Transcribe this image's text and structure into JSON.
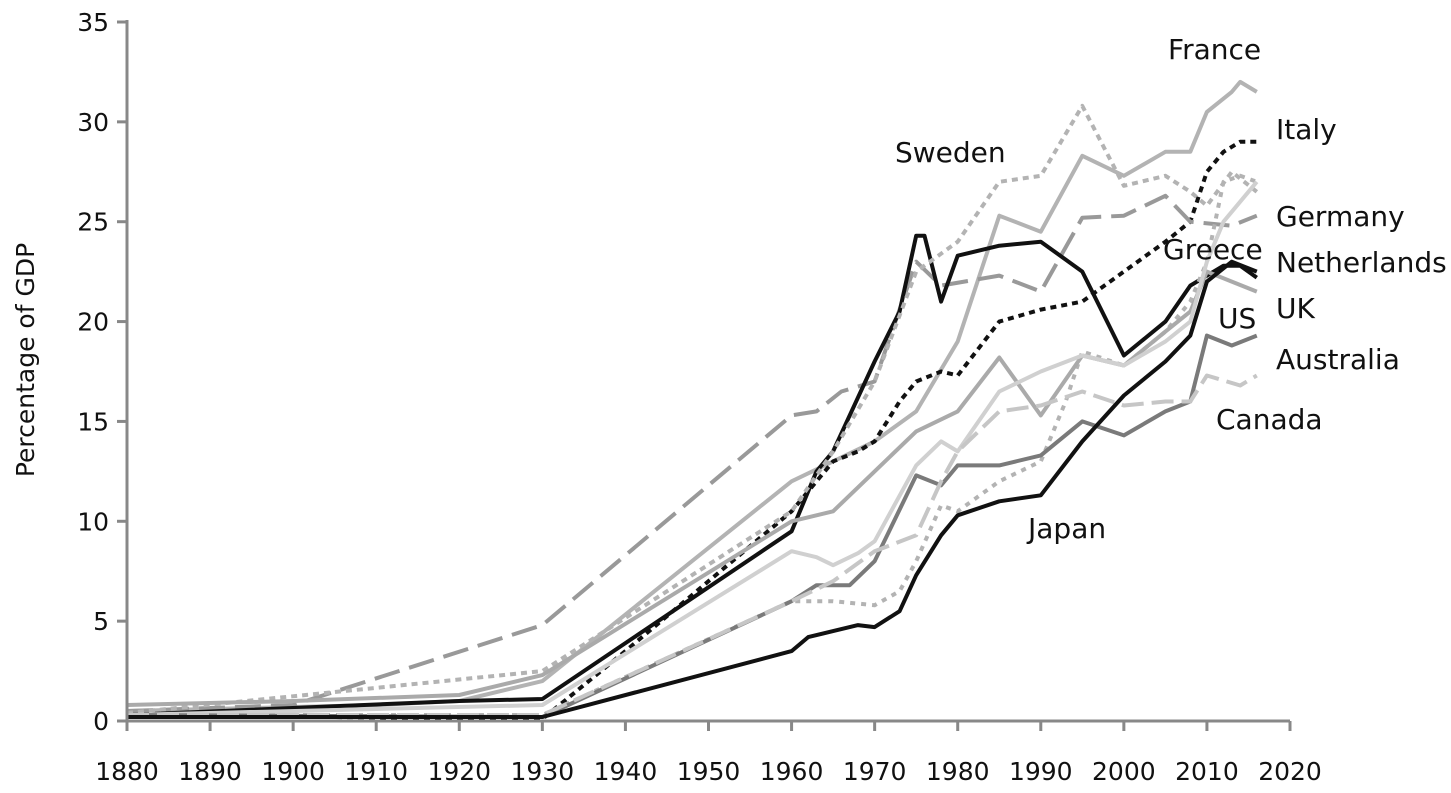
{
  "chart_data": {
    "type": "line",
    "title": "",
    "ylabel": "Percentage of GDP",
    "xlabel": "",
    "xlim": [
      1880,
      2020
    ],
    "ylim": [
      0,
      35
    ],
    "x_ticks": [
      "1880",
      "1890",
      "1900",
      "1910",
      "1920",
      "1930",
      "1940",
      "1950",
      "1960",
      "1970",
      "1980",
      "1990",
      "2000",
      "2010",
      "2020"
    ],
    "y_ticks": [
      "0",
      "5",
      "10",
      "15",
      "20",
      "25",
      "30",
      "35"
    ],
    "grid": false,
    "legend": "direct labels at line ends",
    "series": [
      {
        "name": "France",
        "color": "#b3b3b3",
        "dash": "solid",
        "width": 4,
        "points": [
          [
            1880,
            0.5
          ],
          [
            1890,
            0.6
          ],
          [
            1900,
            0.7
          ],
          [
            1910,
            0.8
          ],
          [
            1920,
            1.0
          ],
          [
            1930,
            2.0
          ],
          [
            1960,
            12.0
          ],
          [
            1970,
            14.0
          ],
          [
            1975,
            15.5
          ],
          [
            1980,
            19.0
          ],
          [
            1985,
            25.3
          ],
          [
            1990,
            24.5
          ],
          [
            1995,
            28.3
          ],
          [
            2000,
            27.3
          ],
          [
            2005,
            28.5
          ],
          [
            2008,
            28.5
          ],
          [
            2010,
            30.5
          ],
          [
            2013,
            31.5
          ],
          [
            2014,
            32.0
          ],
          [
            2016,
            31.5
          ]
        ]
      },
      {
        "name": "Italy",
        "color": "#111111",
        "dash": "6,5",
        "width": 4,
        "points": [
          [
            1880,
            0.3
          ],
          [
            1930,
            0.1
          ],
          [
            1940,
            3.5
          ],
          [
            1960,
            10.5
          ],
          [
            1963,
            12.0
          ],
          [
            1965,
            13.0
          ],
          [
            1968,
            13.5
          ],
          [
            1970,
            14.0
          ],
          [
            1973,
            16.0
          ],
          [
            1975,
            17.0
          ],
          [
            1978,
            17.5
          ],
          [
            1980,
            17.3
          ],
          [
            1985,
            20.0
          ],
          [
            1990,
            20.6
          ],
          [
            1995,
            21.0
          ],
          [
            2000,
            22.5
          ],
          [
            2005,
            24.0
          ],
          [
            2008,
            25.0
          ],
          [
            2010,
            27.5
          ],
          [
            2012,
            28.5
          ],
          [
            2014,
            29.0
          ],
          [
            2016,
            29.0
          ]
        ]
      },
      {
        "name": "Germany",
        "color": "#999999",
        "dash": "26,10",
        "width": 4,
        "points": [
          [
            1880,
            0.5
          ],
          [
            1900,
            0.8
          ],
          [
            1930,
            4.8
          ],
          [
            1960,
            15.3
          ],
          [
            1963,
            15.5
          ],
          [
            1966,
            16.5
          ],
          [
            1970,
            17.0
          ],
          [
            1975,
            23.0
          ],
          [
            1978,
            21.8
          ],
          [
            1985,
            22.3
          ],
          [
            1990,
            21.5
          ],
          [
            1995,
            25.2
          ],
          [
            2000,
            25.3
          ],
          [
            2005,
            26.3
          ],
          [
            2008,
            25.0
          ],
          [
            2013,
            24.8
          ],
          [
            2016,
            25.3
          ]
        ]
      },
      {
        "name": "Sweden",
        "color": "#111111",
        "dash": "solid",
        "width": 4,
        "points": [
          [
            1880,
            0.3
          ],
          [
            1920,
            1.0
          ],
          [
            1930,
            1.1
          ],
          [
            1960,
            9.5
          ],
          [
            1963,
            12.5
          ],
          [
            1965,
            13.5
          ],
          [
            1970,
            18.0
          ],
          [
            1973,
            20.5
          ],
          [
            1975,
            24.3
          ],
          [
            1976,
            24.3
          ],
          [
            1978,
            21.0
          ],
          [
            1980,
            23.3
          ],
          [
            1985,
            23.8
          ],
          [
            1990,
            24.0
          ],
          [
            1995,
            22.5
          ],
          [
            2000,
            18.3
          ],
          [
            2005,
            20.0
          ],
          [
            2008,
            21.8
          ],
          [
            2012,
            22.8
          ],
          [
            2014,
            22.8
          ],
          [
            2016,
            22.2
          ]
        ]
      },
      {
        "name": "Greece",
        "color": "#b3b3b3",
        "dash": "5,6",
        "width": 4,
        "points": [
          [
            1880,
            0.3
          ],
          [
            1930,
            0.3
          ],
          [
            1960,
            6.0
          ],
          [
            1965,
            6.0
          ],
          [
            1970,
            5.8
          ],
          [
            1973,
            6.5
          ],
          [
            1975,
            8.0
          ],
          [
            1978,
            10.8
          ],
          [
            1980,
            10.5
          ],
          [
            1985,
            12.0
          ],
          [
            1990,
            13.0
          ],
          [
            1993,
            16.0
          ],
          [
            1995,
            18.5
          ],
          [
            2000,
            17.8
          ],
          [
            2005,
            19.5
          ],
          [
            2008,
            21.0
          ],
          [
            2010,
            23.0
          ],
          [
            2012,
            27.0
          ],
          [
            2014,
            27.3
          ],
          [
            2016,
            27.0
          ]
        ]
      },
      {
        "name": "Netherlands",
        "color": "#b3b3b3",
        "dash": "6,5",
        "width": 4,
        "points": [
          [
            1880,
            0.4
          ],
          [
            1930,
            2.5
          ],
          [
            1960,
            10.5
          ],
          [
            1965,
            13.5
          ],
          [
            1970,
            17.0
          ],
          [
            1975,
            22.5
          ],
          [
            1980,
            24.0
          ],
          [
            1985,
            27.0
          ],
          [
            1990,
            27.3
          ],
          [
            1995,
            30.8
          ],
          [
            2000,
            26.8
          ],
          [
            2005,
            27.3
          ],
          [
            2008,
            26.5
          ],
          [
            2010,
            25.8
          ],
          [
            2013,
            27.5
          ],
          [
            2016,
            26.5
          ]
        ]
      },
      {
        "name": "UK",
        "color": "#aaaaaa",
        "dash": "solid",
        "width": 4,
        "points": [
          [
            1880,
            0.8
          ],
          [
            1900,
            1.0
          ],
          [
            1920,
            1.3
          ],
          [
            1930,
            2.3
          ],
          [
            1960,
            10.0
          ],
          [
            1965,
            10.5
          ],
          [
            1970,
            12.5
          ],
          [
            1975,
            14.5
          ],
          [
            1980,
            15.5
          ],
          [
            1985,
            18.2
          ],
          [
            1990,
            15.3
          ],
          [
            1995,
            18.3
          ],
          [
            2000,
            17.8
          ],
          [
            2005,
            19.5
          ],
          [
            2008,
            20.5
          ],
          [
            2010,
            22.5
          ],
          [
            2013,
            22.0
          ],
          [
            2016,
            21.5
          ]
        ]
      },
      {
        "name": "US",
        "color": "#d0d0d0",
        "dash": "solid",
        "width": 4,
        "points": [
          [
            1880,
            0.3
          ],
          [
            1930,
            0.8
          ],
          [
            1960,
            8.5
          ],
          [
            1963,
            8.2
          ],
          [
            1965,
            7.8
          ],
          [
            1968,
            8.4
          ],
          [
            1970,
            9.0
          ],
          [
            1975,
            12.8
          ],
          [
            1978,
            14.0
          ],
          [
            1980,
            13.5
          ],
          [
            1985,
            16.5
          ],
          [
            1990,
            17.5
          ],
          [
            1995,
            18.3
          ],
          [
            2000,
            17.8
          ],
          [
            2005,
            19.0
          ],
          [
            2008,
            20.0
          ],
          [
            2010,
            23.0
          ],
          [
            2012,
            25.0
          ],
          [
            2014,
            26.0
          ],
          [
            2016,
            27.0
          ]
        ]
      },
      {
        "name": "Australia",
        "color": "#7a7a7a",
        "dash": "solid",
        "width": 4,
        "points": [
          [
            1880,
            0.3
          ],
          [
            1930,
            0.2
          ],
          [
            1960,
            6.0
          ],
          [
            1963,
            6.8
          ],
          [
            1967,
            6.8
          ],
          [
            1970,
            8.0
          ],
          [
            1975,
            12.3
          ],
          [
            1978,
            11.8
          ],
          [
            1980,
            12.8
          ],
          [
            1985,
            12.8
          ],
          [
            1990,
            13.3
          ],
          [
            1995,
            15.0
          ],
          [
            2000,
            14.3
          ],
          [
            2005,
            15.5
          ],
          [
            2008,
            16.0
          ],
          [
            2010,
            19.3
          ],
          [
            2013,
            18.8
          ],
          [
            2016,
            19.3
          ]
        ]
      },
      {
        "name": "Canada",
        "color": "#c6c6c6",
        "dash": "22,8",
        "width": 4,
        "points": [
          [
            1880,
            0.3
          ],
          [
            1930,
            0.3
          ],
          [
            1960,
            6.0
          ],
          [
            1965,
            7.0
          ],
          [
            1970,
            8.5
          ],
          [
            1975,
            9.3
          ],
          [
            1978,
            12.0
          ],
          [
            1980,
            13.5
          ],
          [
            1985,
            15.5
          ],
          [
            1990,
            15.8
          ],
          [
            1995,
            16.5
          ],
          [
            2000,
            15.8
          ],
          [
            2005,
            16.0
          ],
          [
            2008,
            16.0
          ],
          [
            2010,
            17.3
          ],
          [
            2014,
            16.8
          ],
          [
            2016,
            17.3
          ]
        ]
      },
      {
        "name": "Japan",
        "color": "#111111",
        "dash": "solid",
        "width": 4,
        "points": [
          [
            1880,
            0.2
          ],
          [
            1930,
            0.2
          ],
          [
            1960,
            3.5
          ],
          [
            1962,
            4.2
          ],
          [
            1965,
            4.5
          ],
          [
            1968,
            4.8
          ],
          [
            1970,
            4.7
          ],
          [
            1973,
            5.5
          ],
          [
            1975,
            7.3
          ],
          [
            1978,
            9.3
          ],
          [
            1980,
            10.3
          ],
          [
            1985,
            11.0
          ],
          [
            1990,
            11.3
          ],
          [
            1995,
            14.0
          ],
          [
            2000,
            16.3
          ],
          [
            2005,
            18.0
          ],
          [
            2008,
            19.3
          ],
          [
            2010,
            22.0
          ],
          [
            2013,
            23.0
          ],
          [
            2016,
            22.5
          ]
        ]
      }
    ]
  }
}
